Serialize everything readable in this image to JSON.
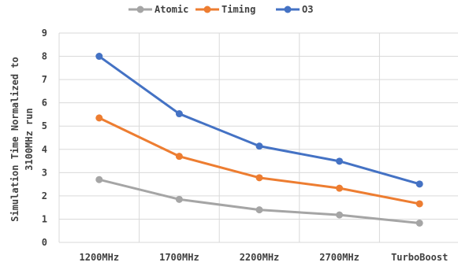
{
  "chart_data": {
    "type": "line",
    "categories": [
      "1200MHz",
      "1700MHz",
      "2200MHz",
      "2700MHz",
      "TurboBoost"
    ],
    "series": [
      {
        "name": "Atomic",
        "color": "#a5a5a5",
        "values": [
          2.7,
          1.85,
          1.4,
          1.18,
          0.83
        ]
      },
      {
        "name": "Timing",
        "color": "#ed7d31",
        "values": [
          5.35,
          3.7,
          2.78,
          2.33,
          1.66
        ]
      },
      {
        "name": "O3",
        "color": "#4472c4",
        "values": [
          8.0,
          5.53,
          4.14,
          3.49,
          2.51
        ]
      }
    ],
    "ylabel_lines": [
      "Simulation Time Normalized to",
      "3100MHz run"
    ],
    "ylim": [
      0,
      9
    ],
    "yticks": [
      "0",
      "1",
      "2",
      "3",
      "4",
      "5",
      "6",
      "7",
      "8",
      "9"
    ],
    "grid": true,
    "legend_position": "top"
  }
}
